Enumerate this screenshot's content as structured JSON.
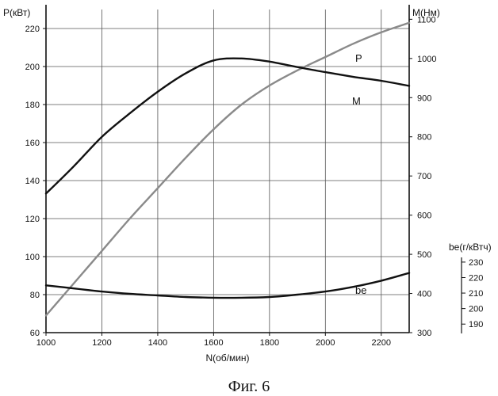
{
  "caption": "Фиг. 6",
  "chart_data": {
    "type": "line",
    "title": "",
    "xlabel": "N(об/мин)",
    "xlim": [
      1000,
      2300
    ],
    "xticks": [
      1000,
      1200,
      1400,
      1600,
      1800,
      2000,
      2200
    ],
    "grid": true,
    "axes": {
      "P": {
        "label": "P(кВт)",
        "lim": [
          60,
          230
        ],
        "ticks": [
          60,
          80,
          100,
          120,
          140,
          160,
          180,
          200,
          220
        ],
        "position": "left"
      },
      "M": {
        "label": "M(Нм)",
        "lim": [
          300,
          1125
        ],
        "ticks": [
          300,
          400,
          500,
          600,
          700,
          800,
          900,
          1000,
          1100
        ],
        "position": "right"
      },
      "be": {
        "label": "be(г/кВтч)",
        "lim": [
          185,
          232
        ],
        "ticks": [
          190,
          200,
          210,
          220,
          230
        ],
        "position": "right-outer"
      }
    },
    "series": [
      {
        "name": "P",
        "axis": "P",
        "style": "gray",
        "x": [
          1000,
          1100,
          1200,
          1300,
          1400,
          1500,
          1600,
          1700,
          1800,
          1900,
          2000,
          2100,
          2200,
          2300
        ],
        "y": [
          69,
          86,
          103,
          120,
          136,
          152,
          167,
          180,
          190,
          198,
          205,
          212,
          218,
          223
        ]
      },
      {
        "name": "M",
        "axis": "M",
        "style": "black",
        "x": [
          1000,
          1100,
          1200,
          1300,
          1400,
          1500,
          1600,
          1700,
          1800,
          1900,
          2000,
          2100,
          2200,
          2300
        ],
        "y": [
          655,
          725,
          800,
          860,
          915,
          962,
          995,
          1000,
          992,
          978,
          965,
          953,
          943,
          930
        ]
      },
      {
        "name": "be",
        "axis": "be",
        "style": "black",
        "x": [
          1000,
          1100,
          1200,
          1300,
          1400,
          1500,
          1600,
          1700,
          1800,
          1900,
          2000,
          2100,
          2200,
          2300
        ],
        "y": [
          215,
          213,
          211,
          209.5,
          208.5,
          207.5,
          207,
          207,
          207.5,
          209,
          211,
          214,
          218,
          223
        ]
      }
    ]
  }
}
